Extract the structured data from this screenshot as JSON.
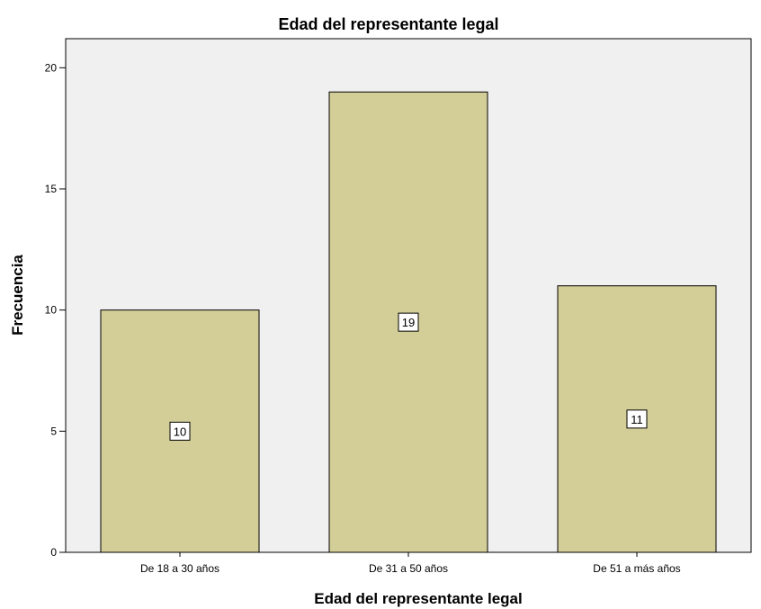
{
  "colors": {
    "plot_background": "#f0f0f0",
    "bar_fill": "#d3ce97",
    "bar_stroke": "#000000"
  },
  "chart_data": {
    "type": "bar",
    "title": "Edad del representante legal",
    "xlabel": "Edad del representante legal",
    "ylabel": "Frecuencia",
    "categories": [
      "De 18 a 30 años",
      "De 31 a 50 años",
      "De 51 a más años"
    ],
    "values": [
      10,
      19,
      11
    ],
    "data_labels": [
      "10",
      "19",
      "11"
    ],
    "ylim": [
      0,
      21.2
    ],
    "yticks": [
      0,
      5,
      10,
      15,
      20
    ],
    "ytick_labels": [
      "0",
      "5",
      "10",
      "15",
      "20"
    ],
    "grid": false,
    "legend": "none"
  }
}
